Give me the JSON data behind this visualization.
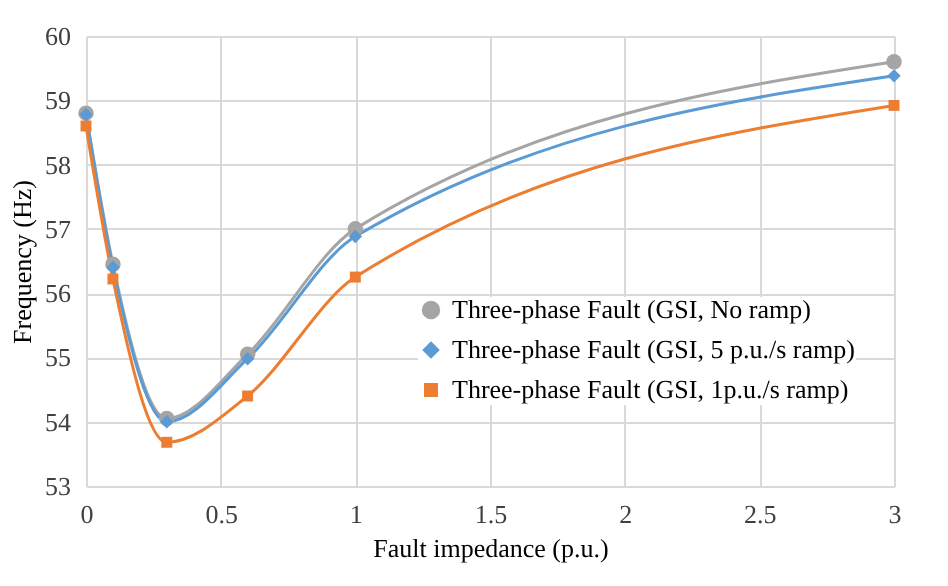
{
  "chart_data": {
    "type": "line",
    "xlabel": "Fault impedance (p.u.)",
    "ylabel": "Frequency (Hz)",
    "x": [
      0,
      0.1,
      0.3,
      0.6,
      1,
      3
    ],
    "series": [
      {
        "name": "Three-phase Fault (GSI, No ramp)",
        "color": "#a5a5a5",
        "marker": "circle",
        "values": [
          58.8,
          56.45,
          54.05,
          55.05,
          57.0,
          59.6
        ]
      },
      {
        "name": "Three-phase Fault (GSI, 5 p.u./s ramp)",
        "color": "#5b9bd5",
        "marker": "diamond",
        "values": [
          58.78,
          56.4,
          54.0,
          54.98,
          56.88,
          59.38
        ]
      },
      {
        "name": "Three-phase Fault (GSI, 1p.u./s ramp)",
        "color": "#ed7d31",
        "marker": "square",
        "values": [
          58.6,
          56.22,
          53.68,
          54.4,
          56.25,
          58.92
        ]
      }
    ],
    "xlim": [
      0,
      3
    ],
    "xticks": [
      0,
      0.5,
      1,
      1.5,
      2,
      2.5,
      3
    ],
    "ylim": [
      53,
      60
    ],
    "yticks": [
      53,
      54,
      55,
      56,
      57,
      58,
      59,
      60
    ],
    "grid": true,
    "legend": "right",
    "line_style": "solid"
  }
}
